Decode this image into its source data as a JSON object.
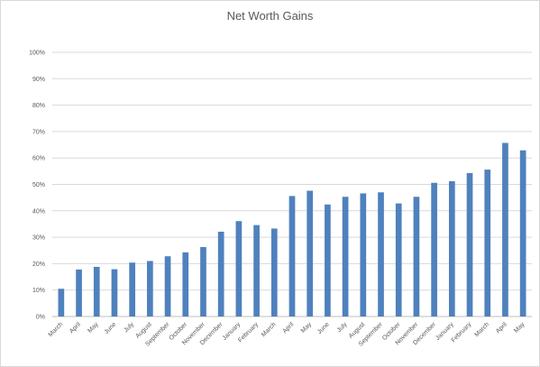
{
  "chart_data": {
    "type": "bar",
    "title": "Net Worth Gains",
    "xlabel": "",
    "ylabel": "",
    "ylim": [
      0,
      100
    ],
    "y_ticks": [
      "0%",
      "10%",
      "20%",
      "30%",
      "40%",
      "50%",
      "60%",
      "70%",
      "80%",
      "90%",
      "100%"
    ],
    "grid": true,
    "legend": "none",
    "bar_color": "#4f81bd",
    "categories": [
      "March",
      "April",
      "May",
      "June",
      "July",
      "August",
      "September",
      "October",
      "November",
      "December",
      "January",
      "February",
      "March",
      "April",
      "May",
      "June",
      "July",
      "August",
      "September",
      "October",
      "November",
      "December",
      "January",
      "February",
      "March",
      "April",
      "May"
    ],
    "values": [
      10.5,
      17.8,
      18.8,
      17.9,
      20.4,
      21.0,
      22.8,
      24.3,
      26.3,
      32.1,
      36.1,
      34.6,
      33.3,
      45.6,
      47.6,
      42.4,
      45.3,
      46.6,
      47.0,
      42.8,
      45.3,
      50.6,
      51.2,
      54.3,
      55.6,
      65.7,
      62.9
    ]
  }
}
